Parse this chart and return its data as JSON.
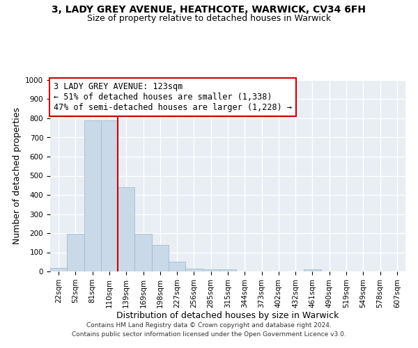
{
  "title_line1": "3, LADY GREY AVENUE, HEATHCOTE, WARWICK, CV34 6FH",
  "title_line2": "Size of property relative to detached houses in Warwick",
  "xlabel": "Distribution of detached houses by size in Warwick",
  "ylabel": "Number of detached properties",
  "bar_labels": [
    "22sqm",
    "52sqm",
    "81sqm",
    "110sqm",
    "139sqm",
    "169sqm",
    "198sqm",
    "227sqm",
    "256sqm",
    "285sqm",
    "315sqm",
    "344sqm",
    "373sqm",
    "402sqm",
    "432sqm",
    "461sqm",
    "490sqm",
    "519sqm",
    "549sqm",
    "578sqm",
    "607sqm"
  ],
  "bar_values": [
    18,
    195,
    788,
    788,
    440,
    195,
    140,
    50,
    15,
    12,
    12,
    0,
    0,
    0,
    0,
    12,
    0,
    0,
    0,
    0,
    0
  ],
  "bar_color": "#c9d9e8",
  "bar_edgecolor": "#a0bcd0",
  "vline_x": 3.5,
  "vline_color": "#cc0000",
  "annotation_line1": "3 LADY GREY AVENUE: 123sqm",
  "annotation_line2": "← 51% of detached houses are smaller (1,338)",
  "annotation_line3": "47% of semi-detached houses are larger (1,228) →",
  "annotation_box_color": "#ffffff",
  "annotation_box_edgecolor": "#cc0000",
  "ylim": [
    0,
    1000
  ],
  "yticks": [
    0,
    100,
    200,
    300,
    400,
    500,
    600,
    700,
    800,
    900,
    1000
  ],
  "background_color": "#e8eef4",
  "footer_line1": "Contains HM Land Registry data © Crown copyright and database right 2024.",
  "footer_line2": "Contains public sector information licensed under the Open Government Licence v3.0.",
  "grid_color": "#ffffff",
  "title_fontsize": 10,
  "subtitle_fontsize": 9,
  "axis_label_fontsize": 9,
  "tick_fontsize": 7.5,
  "annotation_fontsize": 8.5
}
